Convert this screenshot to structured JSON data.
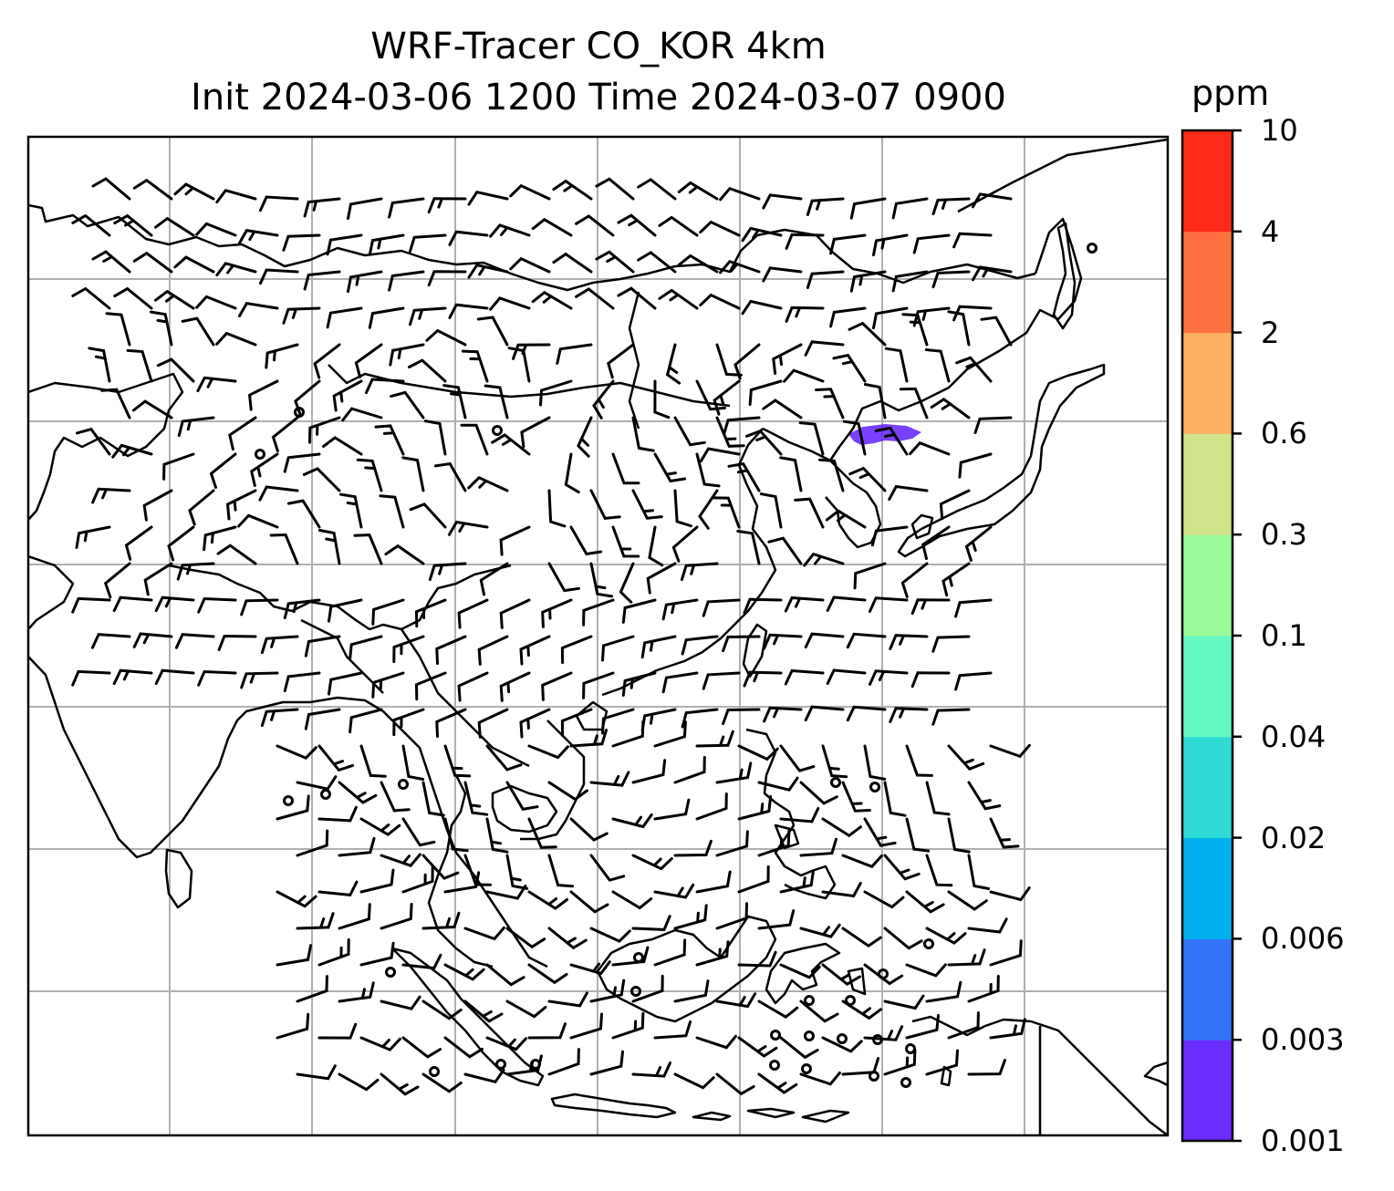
{
  "title": {
    "line1": "WRF-Tracer CO_KOR 4km",
    "line2": "Init 2024-03-06 1200 Time 2024-03-07 0900"
  },
  "colorbar": {
    "unit": "ppm",
    "levels": [
      "0.001",
      "0.003",
      "0.006",
      "0.02",
      "0.04",
      "0.1",
      "0.3",
      "0.6",
      "2",
      "4",
      "10"
    ],
    "colors": [
      "#6a2cff",
      "#3373f5",
      "#00b0ee",
      "#2fdcd5",
      "#66f8c2",
      "#9afa9a",
      "#d0e48c",
      "#fbb062",
      "#ff7040",
      "#ff2b18"
    ]
  },
  "map": {
    "frame_color": "#000000",
    "grid_color": "#b0b0b0",
    "coastline_color": "#000000",
    "tracer_plume_color": "#6a2cff",
    "wind_barbs": true,
    "gridlines": true
  }
}
